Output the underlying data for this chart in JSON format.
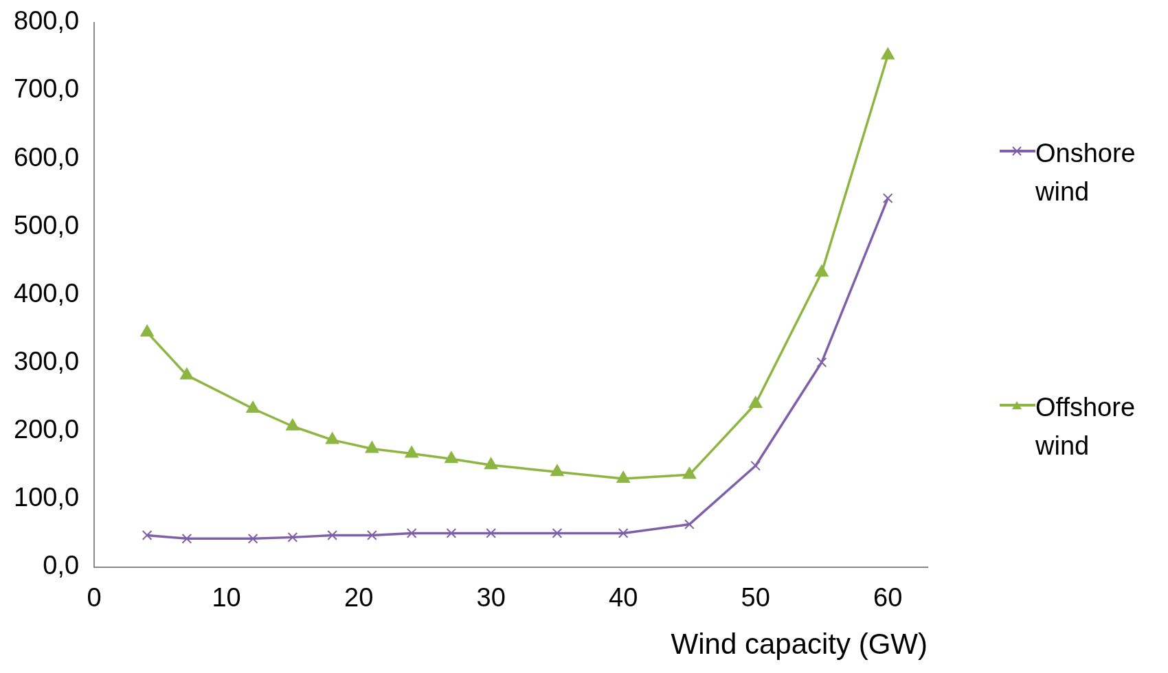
{
  "chart_data": {
    "type": "line",
    "xlabel": "Wind capacity (GW)",
    "x": [
      4,
      7,
      12,
      15,
      18,
      21,
      24,
      27,
      30,
      35,
      40,
      45,
      50,
      55,
      60
    ],
    "series": [
      {
        "name": "Onshore wind",
        "color": "#7f5fa8",
        "marker": "cross",
        "values": [
          47,
          42,
          42,
          44,
          47,
          47,
          50,
          50,
          50,
          50,
          50,
          63,
          149,
          301,
          542
        ]
      },
      {
        "name": "Offshore wind",
        "color": "#8db542",
        "marker": "triangle",
        "values": [
          345,
          282,
          233,
          207,
          187,
          174,
          167,
          159,
          150,
          140,
          130,
          136,
          240,
          433,
          752
        ]
      }
    ],
    "xlim": [
      0,
      63
    ],
    "xticks": [
      0,
      10,
      20,
      30,
      40,
      50,
      60
    ],
    "ylim": [
      0,
      800
    ],
    "yticks": [
      {
        "value": 0,
        "label": "0,0"
      },
      {
        "value": 100,
        "label": "100,0"
      },
      {
        "value": 200,
        "label": "200,0"
      },
      {
        "value": 300,
        "label": "300,0"
      },
      {
        "value": 400,
        "label": "400,0"
      },
      {
        "value": 500,
        "label": "500,0"
      },
      {
        "value": 600,
        "label": "600,0"
      },
      {
        "value": 700,
        "label": "700,0"
      },
      {
        "value": 800,
        "label": "800,0"
      }
    ],
    "grid": false,
    "legend": "right"
  }
}
